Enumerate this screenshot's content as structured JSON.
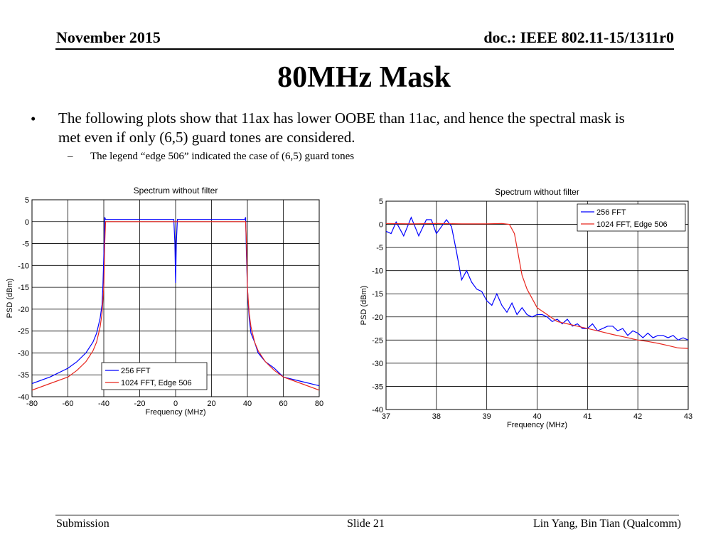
{
  "header": {
    "date": "November 2015",
    "doc": "doc.: IEEE 802.11-15/1311r0"
  },
  "title": "80MHz Mask",
  "bullets": {
    "main_marker": "•",
    "main": "The following plots show that 11ax has lower OOBE than 11ac, and hence the spectral mask is met even if only (6,5) guard tones are considered.",
    "sub_marker": "–",
    "sub": "The legend “edge 506” indicated the case of (6,5) guard tones"
  },
  "footer": {
    "left": "Submission",
    "center": "Slide 21",
    "right": "Lin Yang, Bin Tian (Qualcomm)"
  },
  "colors": {
    "series_256": "#0000ff",
    "series_1024": "#e8271f",
    "grid": "#000000"
  },
  "chart_data": [
    {
      "type": "line",
      "title": "Spectrum without filter",
      "xlabel": "Frequency (MHz)",
      "ylabel": "PSD (dBm)",
      "xlim": [
        -80,
        80
      ],
      "ylim": [
        -40,
        5
      ],
      "xticks": [
        -80,
        -60,
        -40,
        -20,
        0,
        20,
        40,
        60,
        80
      ],
      "yticks": [
        5,
        0,
        -5,
        -10,
        -15,
        -20,
        -25,
        -30,
        -35,
        -40
      ],
      "grid": true,
      "legend_position": "bottom-center",
      "series": [
        {
          "name": "256 FFT",
          "color": "#0000ff",
          "x": [
            -80,
            -70,
            -60,
            -55,
            -50,
            -46,
            -44,
            -42,
            -41,
            -40.5,
            -40,
            -39.5,
            -39,
            -20,
            -1,
            -0.4,
            0,
            0.4,
            1,
            20,
            38.5,
            39,
            39.5,
            40,
            40.5,
            41,
            42,
            44,
            46,
            50,
            55,
            60,
            70,
            80
          ],
          "y": [
            -37,
            -35.5,
            -33.5,
            -32,
            -30,
            -27.5,
            -25.5,
            -22,
            -19,
            -15,
            -8,
            1,
            0.5,
            0.5,
            0.5,
            -5,
            -14,
            -5,
            0.5,
            0.5,
            0.5,
            1,
            -8,
            -15,
            -19,
            -22,
            -25.5,
            -27.5,
            -30,
            -32,
            -33.5,
            -35.5,
            -36.5,
            -37.5
          ]
        },
        {
          "name": "1024 FFT, Edge 506",
          "color": "#e8271f",
          "x": [
            -80,
            -70,
            -60,
            -55,
            -50,
            -46,
            -44,
            -42,
            -41,
            -40,
            -39.5,
            -39,
            0,
            39,
            39.5,
            40,
            41,
            42,
            44,
            46,
            50,
            55,
            60,
            70,
            80
          ],
          "y": [
            -38.5,
            -37,
            -35.5,
            -34,
            -32,
            -29.5,
            -27.5,
            -24,
            -21,
            -15,
            -5,
            0,
            0,
            0,
            -5,
            -15,
            -21,
            -24,
            -27.5,
            -29.5,
            -32,
            -34,
            -35.5,
            -37,
            -38.5
          ]
        }
      ]
    },
    {
      "type": "line",
      "title": "Spectrum without filter",
      "xlabel": "Frequency (MHz)",
      "ylabel": "PSD (dBm)",
      "xlim": [
        37,
        43
      ],
      "ylim": [
        -40,
        5
      ],
      "xticks": [
        37,
        38,
        39,
        40,
        41,
        42,
        43
      ],
      "yticks": [
        5,
        0,
        -5,
        -10,
        -15,
        -20,
        -25,
        -30,
        -35,
        -40
      ],
      "grid": true,
      "legend_position": "top-right",
      "series": [
        {
          "name": "256 FFT",
          "color": "#0000ff",
          "x": [
            37,
            37.1,
            37.2,
            37.35,
            37.5,
            37.65,
            37.8,
            37.9,
            38.0,
            38.1,
            38.2,
            38.3,
            38.4,
            38.5,
            38.6,
            38.7,
            38.8,
            38.9,
            39.0,
            39.1,
            39.2,
            39.3,
            39.4,
            39.5,
            39.6,
            39.7,
            39.8,
            39.9,
            40.0,
            40.1,
            40.2,
            40.3,
            40.4,
            40.5,
            40.6,
            40.7,
            40.8,
            40.9,
            41.0,
            41.1,
            41.2,
            41.3,
            41.4,
            41.5,
            41.6,
            41.7,
            41.8,
            41.9,
            42.0,
            42.1,
            42.2,
            42.3,
            42.4,
            42.5,
            42.6,
            42.7,
            42.8,
            42.9,
            43.0
          ],
          "y": [
            -1.5,
            -2,
            0.5,
            -2.5,
            1.5,
            -2.5,
            1,
            1,
            -2,
            -0.5,
            1,
            -0.5,
            -6,
            -12,
            -10,
            -12.5,
            -14,
            -14.5,
            -16.5,
            -17.5,
            -15,
            -17.5,
            -19,
            -17,
            -19.5,
            -18,
            -19.5,
            -20,
            -19.5,
            -19.5,
            -20,
            -21,
            -20.5,
            -21.5,
            -20.5,
            -22,
            -21.5,
            -22.5,
            -22.5,
            -21.5,
            -23,
            -22.5,
            -22,
            -22,
            -23,
            -22.5,
            -24,
            -23,
            -23.5,
            -24.5,
            -23.5,
            -24.5,
            -24,
            -24,
            -24.5,
            -24,
            -25,
            -24.5,
            -25
          ]
        },
        {
          "name": "1024 FFT, Edge 506",
          "color": "#e8271f",
          "x": [
            37,
            37.5,
            38,
            38.5,
            39,
            39.3,
            39.45,
            39.55,
            39.6,
            39.65,
            39.7,
            39.8,
            39.9,
            40.0,
            40.2,
            40.4,
            40.6,
            40.8,
            41.0,
            41.2,
            41.5,
            41.8,
            42.0,
            42.2,
            42.4,
            42.6,
            42.8,
            43.0
          ],
          "y": [
            0.2,
            0.1,
            0.2,
            0.1,
            0.1,
            0.2,
            0,
            -2,
            -5,
            -8,
            -11,
            -14,
            -16,
            -18,
            -19.5,
            -21,
            -21.5,
            -22,
            -22.5,
            -23,
            -23.8,
            -24.5,
            -25,
            -25.3,
            -25.7,
            -26.2,
            -26.7,
            -26.8
          ]
        }
      ]
    }
  ]
}
